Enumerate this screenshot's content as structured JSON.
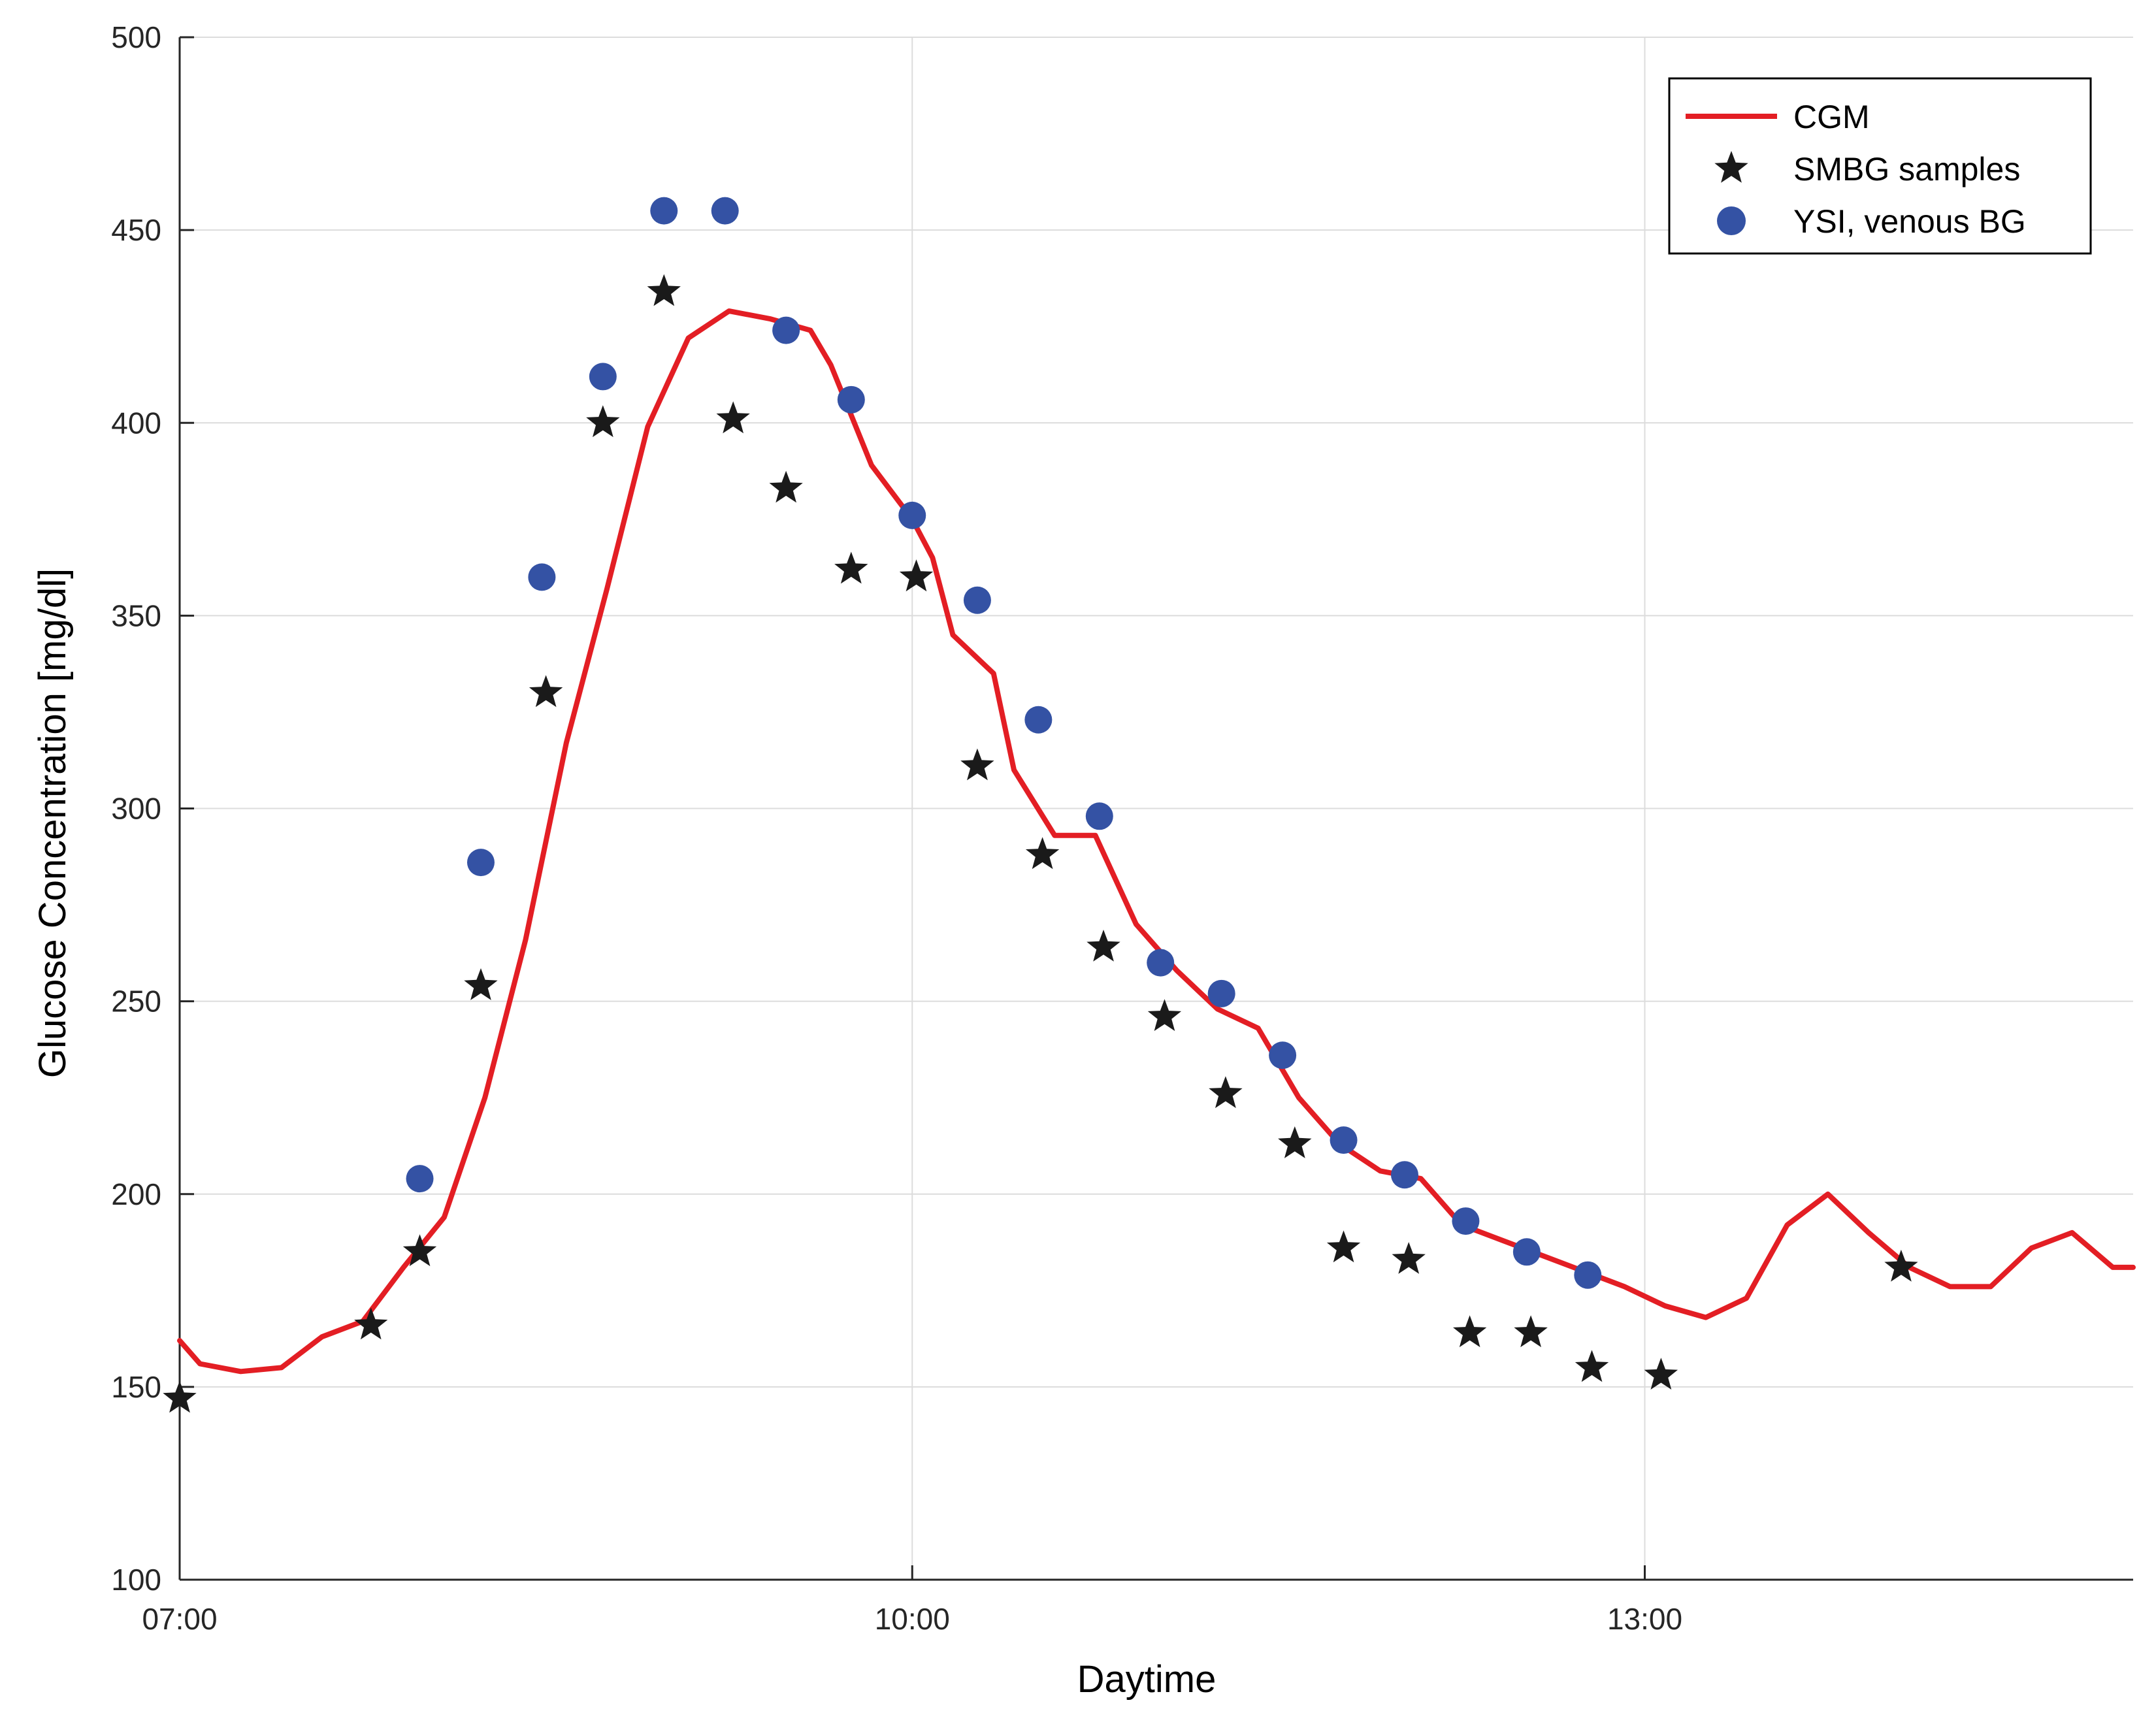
{
  "chart_data": {
    "type": "line",
    "title": "",
    "xlabel": "Daytime",
    "ylabel": "Glucose Concentration [mg/dl]",
    "xlim": [
      "07:00",
      "15:00"
    ],
    "ylim": [
      100,
      500
    ],
    "x_ticks": [
      "07:00",
      "10:00",
      "13:00"
    ],
    "y_ticks": [
      100,
      150,
      200,
      250,
      300,
      350,
      400,
      450,
      500
    ],
    "grid": true,
    "legend": {
      "placement": "top-right",
      "entries": [
        "CGM",
        "SMBG samples",
        "YSI, venous BG"
      ]
    },
    "colors": {
      "cgm": "#e31e24",
      "smbg": "#1a1a1a",
      "ysi": "#3452a4",
      "grid": "#dcdcdc",
      "axis": "#262626"
    },
    "series": [
      {
        "name": "CGM",
        "style": "line",
        "points": [
          [
            "07:00",
            162
          ],
          [
            "07:05",
            156
          ],
          [
            "07:15",
            154
          ],
          [
            "07:25",
            155
          ],
          [
            "07:35",
            163
          ],
          [
            "07:45",
            167
          ],
          [
            "07:55",
            181
          ],
          [
            "08:05",
            194
          ],
          [
            "08:15",
            225
          ],
          [
            "08:25",
            266
          ],
          [
            "08:35",
            317
          ],
          [
            "08:45",
            357
          ],
          [
            "08:55",
            399
          ],
          [
            "09:05",
            422
          ],
          [
            "09:15",
            429
          ],
          [
            "09:25",
            427
          ],
          [
            "09:35",
            424
          ],
          [
            "09:40",
            415
          ],
          [
            "09:50",
            389
          ],
          [
            "10:00",
            375
          ],
          [
            "10:05",
            365
          ],
          [
            "10:10",
            345
          ],
          [
            "10:20",
            335
          ],
          [
            "10:25",
            310
          ],
          [
            "10:35",
            293
          ],
          [
            "10:45",
            293
          ],
          [
            "10:55",
            270
          ],
          [
            "11:05",
            258
          ],
          [
            "11:15",
            248
          ],
          [
            "11:25",
            243
          ],
          [
            "11:35",
            225
          ],
          [
            "11:45",
            213
          ],
          [
            "11:55",
            206
          ],
          [
            "12:05",
            204
          ],
          [
            "12:15",
            192
          ],
          [
            "12:25",
            188
          ],
          [
            "12:35",
            184
          ],
          [
            "12:45",
            180
          ],
          [
            "12:55",
            176
          ],
          [
            "13:05",
            171
          ],
          [
            "13:15",
            168
          ],
          [
            "13:25",
            173
          ],
          [
            "13:35",
            192
          ],
          [
            "13:45",
            200
          ],
          [
            "13:55",
            190
          ],
          [
            "14:05",
            181
          ],
          [
            "14:15",
            176
          ],
          [
            "14:25",
            176
          ],
          [
            "14:35",
            186
          ],
          [
            "14:45",
            190
          ],
          [
            "14:55",
            181
          ],
          [
            "15:00",
            181
          ]
        ]
      },
      {
        "name": "SMBG samples",
        "style": "star",
        "points": [
          [
            "07:00",
            147
          ],
          [
            "07:47",
            166
          ],
          [
            "07:59",
            185
          ],
          [
            "08:14",
            254
          ],
          [
            "08:30",
            330
          ],
          [
            "08:44",
            400
          ],
          [
            "08:59",
            434
          ],
          [
            "09:16",
            401
          ],
          [
            "09:29",
            383
          ],
          [
            "09:45",
            362
          ],
          [
            "10:01",
            360
          ],
          [
            "10:16",
            311
          ],
          [
            "10:32",
            288
          ],
          [
            "10:47",
            264
          ],
          [
            "11:02",
            246
          ],
          [
            "11:17",
            226
          ],
          [
            "11:34",
            213
          ],
          [
            "11:46",
            186
          ],
          [
            "12:02",
            183
          ],
          [
            "12:17",
            164
          ],
          [
            "12:32",
            164
          ],
          [
            "12:47",
            155
          ],
          [
            "13:04",
            153
          ],
          [
            "14:03",
            181
          ]
        ]
      },
      {
        "name": "YSI, venous BG",
        "style": "circle",
        "points": [
          [
            "07:59",
            204
          ],
          [
            "08:14",
            286
          ],
          [
            "08:29",
            360
          ],
          [
            "08:44",
            412
          ],
          [
            "08:59",
            455
          ],
          [
            "09:14",
            455
          ],
          [
            "09:29",
            424
          ],
          [
            "09:45",
            406
          ],
          [
            "10:00",
            376
          ],
          [
            "10:16",
            354
          ],
          [
            "10:31",
            323
          ],
          [
            "10:46",
            298
          ],
          [
            "11:01",
            260
          ],
          [
            "11:16",
            252
          ],
          [
            "11:31",
            236
          ],
          [
            "11:46",
            214
          ],
          [
            "12:01",
            205
          ],
          [
            "12:16",
            193
          ],
          [
            "12:31",
            185
          ],
          [
            "12:46",
            179
          ]
        ]
      }
    ]
  }
}
